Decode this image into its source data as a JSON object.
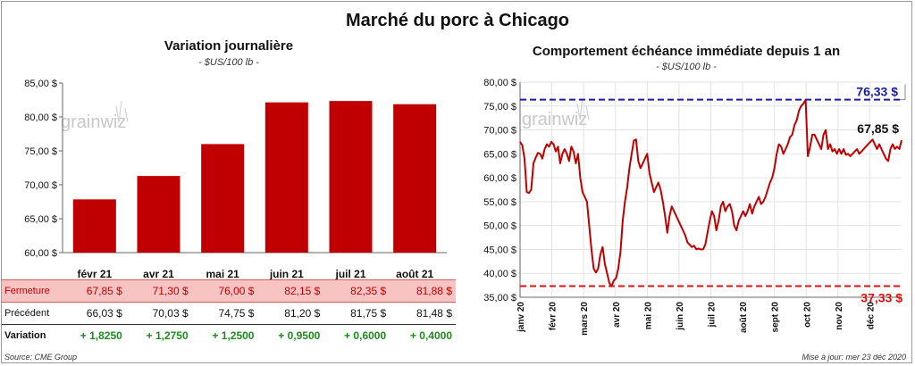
{
  "title": "Marché du porc à Chicago",
  "left": {
    "subtitle": "Variation  journalière",
    "unit": "- $US/100 lb -",
    "watermark": "grainwiz",
    "rows": [
      {
        "label": "Fermeture",
        "values": [
          "67,85  $",
          "71,30  $",
          "76,00  $",
          "82,15  $",
          "82,35  $",
          "81,88  $"
        ]
      },
      {
        "label": "Précédent",
        "values": [
          "66,03  $",
          "70,03  $",
          "74,75  $",
          "81,20  $",
          "81,75  $",
          "81,48  $"
        ]
      },
      {
        "label": "Variation",
        "values": [
          "+ 1,8250",
          "+ 1,2750",
          "+ 1,2500",
          "+ 0,9500",
          "+ 0,6000",
          "+ 0,4000"
        ]
      }
    ],
    "source": "Source: CME Group"
  },
  "right": {
    "subtitle": "Comportement  échéance immédiate depuis 1 an",
    "unit": "- $US/100 lb -",
    "watermark": "grainwiz",
    "high_label": "76,33 $",
    "low_label": "37,33 $",
    "last_label": "67,85 $",
    "updated": "Mise à jour: mer 23 déc 2020"
  },
  "chart_data": [
    {
      "type": "bar",
      "title": "Variation  journalière",
      "categories": [
        "févr 21",
        "avr 21",
        "mai 21",
        "juin 21",
        "juil 21",
        "août 21"
      ],
      "values": [
        67.85,
        71.3,
        76.0,
        82.15,
        82.35,
        81.88
      ],
      "ylim": [
        60,
        85
      ],
      "yticks": [
        "60,00 $",
        "65,00 $",
        "70,00 $",
        "75,00 $",
        "80,00 $",
        "85,00 $"
      ],
      "color": "#c00000",
      "grid": false
    },
    {
      "type": "line",
      "title": "Comportement  échéance immédiate depuis 1 an",
      "ylim": [
        35,
        80
      ],
      "yticks": [
        "35,00 $",
        "40,00 $",
        "45,00 $",
        "50,00 $",
        "55,00 $",
        "60,00 $",
        "65,00 $",
        "70,00 $",
        "75,00 $",
        "80,00 $"
      ],
      "xticks": [
        "janv 20",
        "févr 20",
        "mars 20",
        "avr 20",
        "mai 20",
        "juin 20",
        "juil 20",
        "août 20",
        "sept 20",
        "oct 20",
        "nov 20",
        "déc 20"
      ],
      "color": "#c00000",
      "high": 76.33,
      "low": 37.33,
      "last": 67.85,
      "grid": true,
      "values": [
        67.5,
        66.8,
        64,
        57,
        56.8,
        57.5,
        63,
        64.2,
        65.2,
        65,
        64,
        66,
        67,
        66.5,
        67.5,
        67,
        65.5,
        66.5,
        63,
        65,
        66,
        65,
        63.5,
        66.5,
        65.5,
        63,
        65,
        60,
        57,
        56,
        55,
        50,
        45,
        41,
        40.2,
        41,
        44,
        45.5,
        42,
        40,
        38,
        37.3,
        38.5,
        39,
        41,
        44.5,
        51,
        55,
        58,
        62,
        65,
        67.8,
        68,
        63.5,
        62,
        63,
        64,
        65,
        61,
        59,
        57,
        58,
        59,
        57.5,
        55,
        52,
        48.5,
        52,
        54,
        53,
        52,
        51,
        50,
        49,
        48,
        46.5,
        46,
        45.5,
        45.8,
        45,
        45.2,
        45,
        45,
        46,
        48.5,
        51,
        53,
        52,
        49,
        51,
        54,
        55,
        53,
        54,
        54.5,
        53,
        50,
        49,
        51,
        52,
        53,
        52,
        53,
        54.5,
        52.5,
        54,
        55,
        56,
        54.5,
        55,
        56,
        57.5,
        59,
        60,
        62,
        65,
        67,
        66.5,
        65,
        66,
        67,
        68.5,
        69,
        71,
        72,
        74,
        75,
        75.5,
        76.3,
        64.5,
        66.5,
        69,
        69,
        68,
        67,
        66,
        69,
        70,
        66,
        67,
        65.5,
        66,
        65,
        66,
        65,
        66,
        64.8,
        65,
        64.5,
        65,
        65.5,
        66,
        65,
        65.5,
        66,
        66.5,
        67,
        67.5,
        68,
        67,
        66,
        67,
        66,
        65,
        64,
        63.5,
        66,
        67,
        66,
        66.5,
        66,
        67.85
      ]
    }
  ]
}
